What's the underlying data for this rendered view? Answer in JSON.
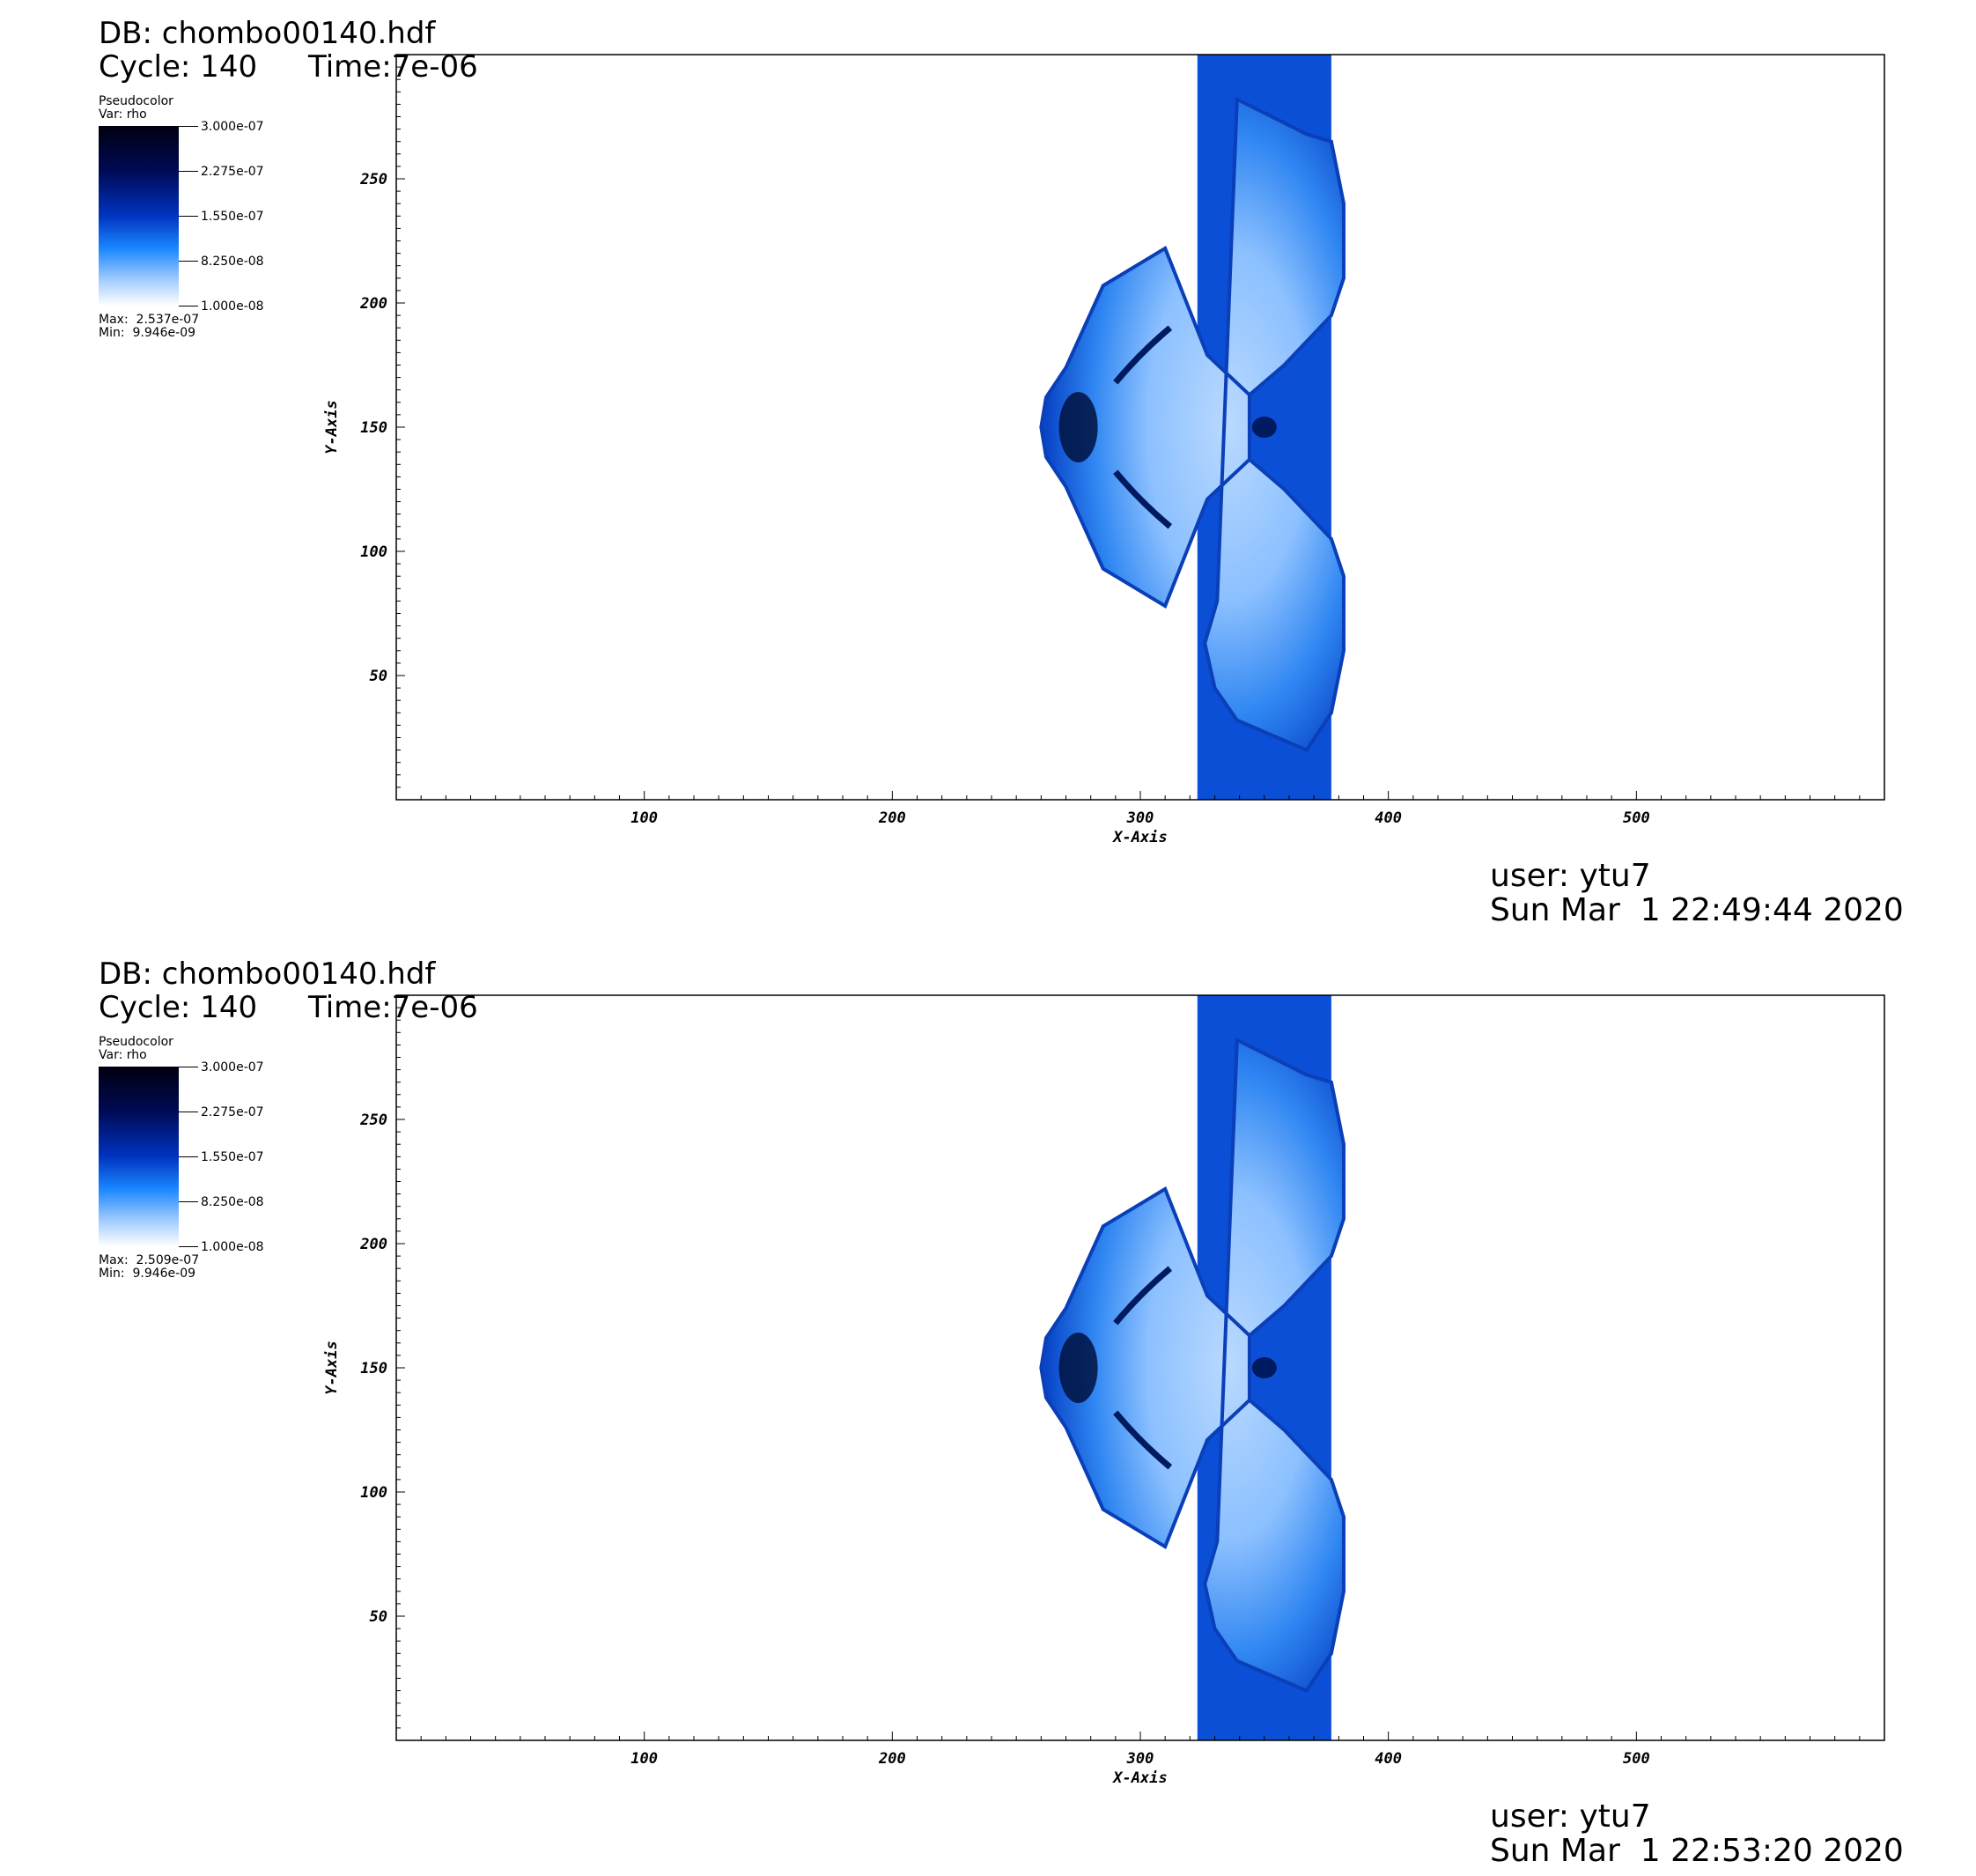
{
  "panels": [
    {
      "db_label": "DB: chombo00140.hdf",
      "cycle_label": "Cycle: 140",
      "time_label": "Time:7e-06",
      "legend": {
        "plot_type": "Pseudocolor",
        "var_label": "Var: rho",
        "ticks": [
          "3.000e-07",
          "2.275e-07",
          "1.550e-07",
          "8.250e-08",
          "1.000e-08"
        ],
        "max_label": "Max:  2.537e-07",
        "min_label": "Min:  9.946e-09"
      },
      "user_label": "user: ytu7",
      "date_label": "Sun Mar  1 22:49:44 2020"
    },
    {
      "db_label": "DB: chombo00140.hdf",
      "cycle_label": "Cycle: 140",
      "time_label": "Time:7e-06",
      "legend": {
        "plot_type": "Pseudocolor",
        "var_label": "Var: rho",
        "ticks": [
          "3.000e-07",
          "2.275e-07",
          "1.550e-07",
          "8.250e-08",
          "1.000e-08"
        ],
        "max_label": "Max:  2.509e-07",
        "min_label": "Min:  9.946e-09"
      },
      "user_label": "user: ytu7",
      "date_label": "Sun Mar  1 22:53:20 2020"
    }
  ],
  "chart_data": {
    "type": "heatmap",
    "variable": "rho",
    "colormap": [
      "#000010",
      "#000a55",
      "#0033c0",
      "#1a86ff",
      "#9ccaff",
      "#ffffff"
    ],
    "color_range": [
      1e-08,
      3e-07
    ],
    "xlabel": "X-Axis",
    "ylabel": "Y-Axis",
    "xlim": [
      0,
      600
    ],
    "ylim": [
      0,
      300
    ],
    "x_ticks": [
      100,
      200,
      300,
      400,
      500
    ],
    "y_ticks": [
      50,
      100,
      150,
      200,
      250
    ],
    "grid": false,
    "column_x_range": [
      323,
      377
    ],
    "column_color": "#0a4fd6",
    "region_polygon_x": [
      339,
      367,
      377,
      382,
      382,
      377,
      358,
      344,
      344,
      327,
      310,
      285,
      270,
      262,
      260,
      262,
      270,
      285,
      310,
      327,
      344,
      344,
      358,
      377,
      382,
      382,
      377,
      367,
      339,
      330,
      326,
      331
    ],
    "region_polygon_y": [
      282,
      268,
      265,
      240,
      210,
      195,
      175,
      163,
      137,
      121,
      78,
      93,
      126,
      138,
      150,
      162,
      174,
      207,
      222,
      179,
      163,
      137,
      125,
      105,
      90,
      60,
      35,
      20,
      32,
      45,
      63,
      80
    ]
  }
}
